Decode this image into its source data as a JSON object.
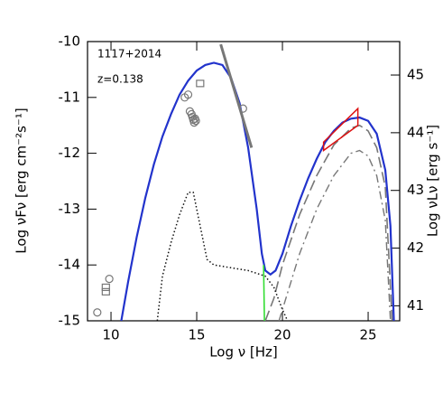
{
  "chart_data": {
    "type": "line",
    "annotations": [
      "1117+2014",
      "z=0.138"
    ],
    "xlabel": "Log ν [Hz]",
    "ylabel": "Log νFν [erg cm⁻²s⁻¹]",
    "y2label": "Log νLν [erg s⁻¹]",
    "xlim": [
      8.63,
      26.84
    ],
    "ylim": [
      -15,
      -10
    ],
    "xticks": [
      10,
      15,
      20,
      25
    ],
    "yticks": [
      -15,
      -14,
      -13,
      -12,
      -11,
      -10
    ],
    "y2lim": [
      40.74,
      45.58
    ],
    "y2ticks": [
      41,
      42,
      43,
      44,
      45
    ],
    "series": [
      {
        "color": "#2233cc",
        "dash": "solid",
        "width": 2.2,
        "x": [
          10.6,
          11,
          11.5,
          12,
          12.5,
          13,
          13.5,
          14,
          14.5,
          15,
          15.5,
          16,
          16.5,
          17,
          17.5,
          18,
          18.5,
          18.8,
          19,
          19.3,
          19.6,
          20,
          20.5,
          21,
          21.5,
          22,
          22.5,
          23,
          23.5,
          24,
          24.5,
          25,
          25.5,
          26,
          26.3,
          26.5
        ],
        "values": [
          -15,
          -14.3,
          -13.5,
          -12.8,
          -12.2,
          -11.7,
          -11.3,
          -10.95,
          -10.7,
          -10.52,
          -10.42,
          -10.38,
          -10.42,
          -10.65,
          -11.1,
          -11.9,
          -13.0,
          -13.8,
          -14.1,
          -14.17,
          -14.1,
          -13.8,
          -13.3,
          -12.85,
          -12.45,
          -12.1,
          -11.8,
          -11.6,
          -11.45,
          -11.38,
          -11.36,
          -11.42,
          -11.65,
          -12.3,
          -13.3,
          -15
        ]
      },
      {
        "color": "#777777",
        "dash": "dashed",
        "width": 1.6,
        "x": [
          19,
          19.5,
          20,
          21,
          22,
          23,
          24,
          24.5,
          25,
          25.5,
          26,
          26.4
        ],
        "values": [
          -15,
          -14.6,
          -14.0,
          -13.1,
          -12.4,
          -11.85,
          -11.55,
          -11.5,
          -11.6,
          -11.9,
          -12.6,
          -15
        ]
      },
      {
        "color": "#777777",
        "dash": "dashdot",
        "width": 1.4,
        "x": [
          19.8,
          20.5,
          21,
          22,
          23,
          24,
          24.5,
          25,
          25.5,
          26,
          26.3
        ],
        "values": [
          -15,
          -14.3,
          -13.8,
          -13.0,
          -12.4,
          -12.0,
          -11.95,
          -12.05,
          -12.4,
          -13.2,
          -15
        ]
      },
      {
        "color": "#111111",
        "dash": "dotted",
        "width": 1.5,
        "x": [
          12.7,
          13,
          13.5,
          14,
          14.5,
          14.8,
          15.2,
          15.6,
          16,
          17,
          18,
          19,
          19.5,
          20,
          20.3
        ],
        "values": [
          -15,
          -14.2,
          -13.6,
          -13.1,
          -12.7,
          -12.7,
          -13.3,
          -13.9,
          -14.0,
          -14.05,
          -14.1,
          -14.2,
          -14.4,
          -14.8,
          -15
        ]
      },
      {
        "color": "#33dd33",
        "dash": "solid",
        "width": 1.6,
        "x": [
          18.9,
          18.95
        ],
        "values": [
          -14.0,
          -15
        ]
      },
      {
        "color": "#777777",
        "dash": "solid",
        "width": 3,
        "x": [
          16.4,
          18.2
        ],
        "values": [
          -10.05,
          -11.9
        ]
      }
    ],
    "bowtie": {
      "color": "#dd1111",
      "x": [
        22.4,
        24.4,
        24.4,
        22.4
      ],
      "values": [
        -11.8,
        -11.2,
        -11.5,
        -11.95
      ]
    },
    "markers": [
      {
        "shape": "circle",
        "color": "#777777",
        "x": [
          9.2,
          9.9,
          14.3,
          14.5,
          14.6,
          14.7,
          14.75,
          14.8,
          14.85,
          14.9,
          14.95,
          17.7
        ],
        "values": [
          -14.85,
          -14.25,
          -11.0,
          -10.95,
          -11.25,
          -11.3,
          -11.35,
          -11.4,
          -11.45,
          -11.38,
          -11.42,
          -11.2
        ]
      },
      {
        "shape": "square",
        "color": "#777777",
        "x": [
          9.7,
          9.7,
          15.2
        ],
        "values": [
          -14.4,
          -14.48,
          -10.75
        ]
      }
    ]
  }
}
